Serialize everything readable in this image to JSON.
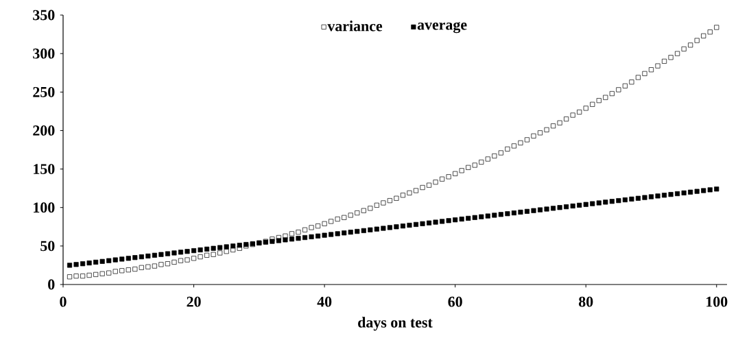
{
  "chart_data": {
    "type": "scatter",
    "xlabel": "days on test",
    "x": [
      1,
      2,
      3,
      4,
      5,
      6,
      7,
      8,
      9,
      10,
      11,
      12,
      13,
      14,
      15,
      16,
      17,
      18,
      19,
      20,
      21,
      22,
      23,
      24,
      25,
      26,
      27,
      28,
      29,
      30,
      31,
      32,
      33,
      34,
      35,
      36,
      37,
      38,
      39,
      40,
      41,
      42,
      43,
      44,
      45,
      46,
      47,
      48,
      49,
      50,
      51,
      52,
      53,
      54,
      55,
      56,
      57,
      58,
      59,
      60,
      61,
      62,
      63,
      64,
      65,
      66,
      67,
      68,
      69,
      70,
      71,
      72,
      73,
      74,
      75,
      76,
      77,
      78,
      79,
      80,
      81,
      82,
      83,
      84,
      85,
      86,
      87,
      88,
      89,
      90,
      91,
      92,
      93,
      94,
      95,
      96,
      97,
      98,
      99,
      100
    ],
    "series": [
      {
        "name": "variance",
        "color": "#000000",
        "values": [
          10,
          11,
          11,
          12,
          13,
          14,
          15,
          17,
          18,
          19,
          20,
          22,
          23,
          24,
          26,
          27,
          29,
          31,
          32,
          34,
          36,
          38,
          39,
          41,
          43,
          45,
          47,
          50,
          52,
          54,
          56,
          59,
          61,
          63,
          66,
          68,
          71,
          74,
          76,
          79,
          82,
          85,
          87,
          90,
          93,
          96,
          99,
          103,
          106,
          109,
          112,
          116,
          119,
          122,
          126,
          129,
          133,
          137,
          140,
          144,
          148,
          152,
          155,
          159,
          163,
          167,
          171,
          176,
          180,
          184,
          188,
          193,
          197,
          201,
          206,
          210,
          215,
          220,
          224,
          229,
          234,
          239,
          243,
          248,
          253,
          258,
          263,
          269,
          274,
          279,
          284,
          290,
          295,
          300,
          306,
          311,
          317,
          323,
          328,
          334
        ]
      },
      {
        "name": "average",
        "color": "#000000",
        "values": [
          25,
          26,
          27,
          28,
          29,
          30,
          31,
          32,
          33,
          34,
          35,
          36,
          37,
          38,
          39,
          40,
          41,
          42,
          43,
          44,
          45,
          46,
          47,
          48,
          49,
          50,
          51,
          52,
          53,
          54,
          55,
          56,
          57,
          58,
          59,
          60,
          61,
          62,
          63,
          64,
          65,
          66,
          67,
          68,
          69,
          70,
          71,
          72,
          73,
          74,
          75,
          76,
          77,
          78,
          79,
          80,
          81,
          82,
          83,
          84,
          85,
          86,
          87,
          88,
          89,
          90,
          91,
          92,
          93,
          94,
          95,
          96,
          97,
          98,
          99,
          100,
          101,
          102,
          103,
          104,
          105,
          106,
          107,
          108,
          109,
          110,
          111,
          112,
          113,
          114,
          115,
          116,
          117,
          118,
          119,
          120,
          121,
          122,
          123,
          124
        ]
      }
    ],
    "xlim": [
      0,
      101.6
    ],
    "ylim": [
      0,
      350
    ],
    "xticks": [
      0,
      20,
      40,
      60,
      80,
      100
    ],
    "yticks": [
      0,
      50,
      100,
      150,
      200,
      250,
      300,
      350
    ],
    "marker": "square",
    "legend": "top",
    "grid": false
  }
}
